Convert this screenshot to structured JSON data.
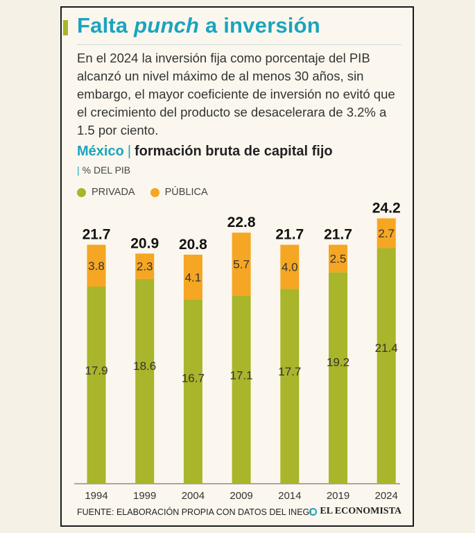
{
  "header": {
    "title_pre": "Falta ",
    "title_em": "punch",
    "title_post": " a inversión"
  },
  "intro": "En el 2024 la inversión fija como porcentaje del PIB alcanzó un nivel máximo de al menos 30 años, sin embargo, el mayor coeficiente de inversión no evitó que el crecimiento del producto se desacelerara de 3.2% a 1.5 por ciento.",
  "subtitle": {
    "country": "México",
    "separator": "|",
    "metric": "formación bruta de capital fijo"
  },
  "units": {
    "bar": "|",
    "label": "% DEL PIB"
  },
  "legend": {
    "private": "PRIVADA",
    "public": "PÚBLICA"
  },
  "colors": {
    "private": "#a9b52a",
    "public": "#f5a623",
    "accent": "#1aa4bd"
  },
  "chart_data": {
    "type": "bar",
    "stacked": true,
    "categories": [
      "1994",
      "1999",
      "2004",
      "2009",
      "2014",
      "2019",
      "2024"
    ],
    "series": [
      {
        "name": "PRIVADA",
        "values": [
          17.9,
          18.6,
          16.7,
          17.1,
          17.7,
          19.2,
          21.4
        ]
      },
      {
        "name": "PÚBLICA",
        "values": [
          3.8,
          2.3,
          4.1,
          5.7,
          4.0,
          2.5,
          2.7
        ]
      }
    ],
    "totals": [
      "21.7",
      "20.9",
      "20.8",
      "22.8",
      "21.7",
      "21.7",
      "24.2"
    ],
    "private_labels": [
      "17.9",
      "18.6",
      "16.7",
      "17.1",
      "17.7",
      "19.2",
      "21.4"
    ],
    "public_labels": [
      "3.8",
      "2.3",
      "4.1",
      "5.7",
      "4.0",
      "2.5",
      "2.7"
    ],
    "ylim": [
      0,
      24.2
    ],
    "title": "México | formación bruta de capital fijo",
    "ylabel": "% DEL PIB",
    "xlabel": ""
  },
  "footer": {
    "source": "FUENTE: ELABORACIÓN PROPIA CON DATOS DEL INEGI.",
    "brand": "EL ECONOMISTA"
  }
}
